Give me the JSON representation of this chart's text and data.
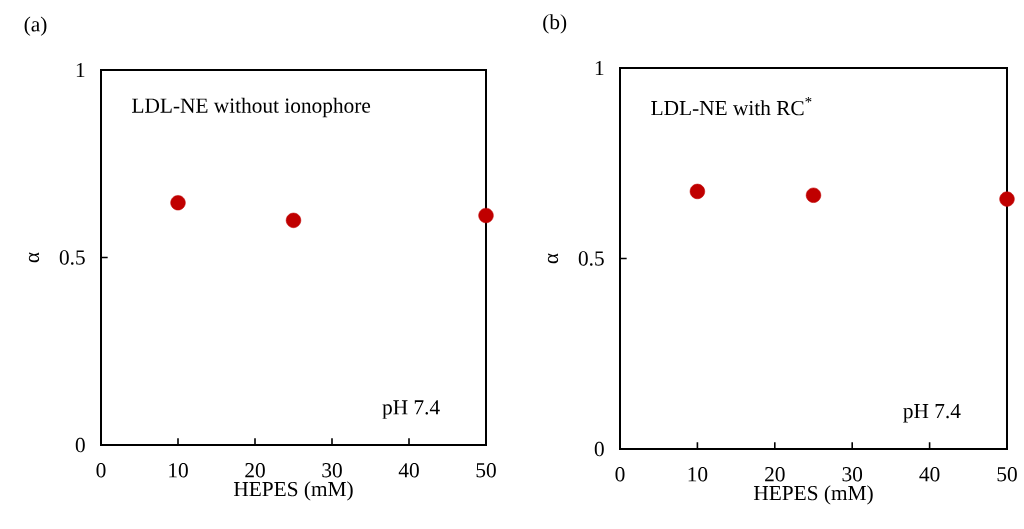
{
  "chart_data": [
    {
      "type": "scatter",
      "title": "(a)",
      "xlabel": "HEPES  (mM)",
      "ylabel": "α",
      "x": [
        10,
        25,
        50
      ],
      "values": [
        0.646,
        0.599,
        0.612
      ],
      "color": "#c00000",
      "marker": "circle",
      "xlim": [
        0,
        50
      ],
      "ylim": [
        0,
        1
      ],
      "xticks": [
        0,
        10,
        20,
        30,
        40,
        50
      ],
      "yticks": [
        0,
        0.5,
        1
      ],
      "annotations": [
        "LDL-NE  without ionophore",
        "pH 7.4"
      ]
    },
    {
      "type": "scatter",
      "title": "(b)",
      "xlabel": "HEPES  (mM)",
      "ylabel": "α",
      "x": [
        10,
        25,
        50
      ],
      "values": [
        0.676,
        0.666,
        0.656
      ],
      "color": "#c00000",
      "marker": "circle",
      "xlim": [
        0,
        50
      ],
      "ylim": [
        0,
        1
      ],
      "xticks": [
        0,
        10,
        20,
        30,
        40,
        50
      ],
      "yticks": [
        0,
        0.5,
        1
      ],
      "annotations": [
        "LDL-NE  with RC$^{*}$",
        "pH 7.4"
      ]
    }
  ]
}
